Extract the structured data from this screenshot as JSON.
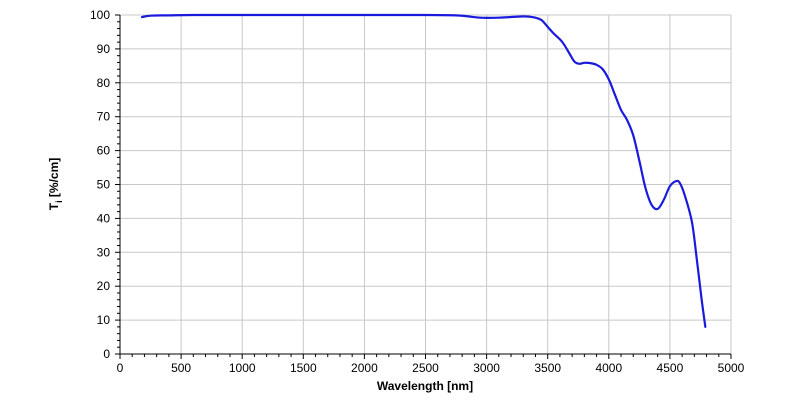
{
  "chart_data": {
    "type": "line",
    "xlabel": "Wavelength [nm]",
    "ylabel": "T",
    "ylabel_sub": "i",
    "ylabel_suffix": " [%/cm]",
    "xlim": [
      0,
      5000
    ],
    "ylim": [
      0,
      100
    ],
    "xticks": [
      0,
      500,
      1000,
      1500,
      2000,
      2500,
      3000,
      3500,
      4000,
      4500,
      5000
    ],
    "yticks": [
      0,
      10,
      20,
      30,
      40,
      50,
      60,
      70,
      80,
      90,
      100
    ],
    "grid": true,
    "line_color": "#1a1adc",
    "series": [
      {
        "x": [
          180,
          250,
          400,
          600,
          1000,
          1500,
          2000,
          2500,
          2750,
          2850,
          2950,
          3100,
          3200,
          3300,
          3350,
          3400,
          3450,
          3500,
          3550,
          3620,
          3680,
          3720,
          3760,
          3800,
          3850,
          3900,
          3950,
          4000,
          4050,
          4100,
          4150,
          4200,
          4250,
          4300,
          4350,
          4400,
          4450,
          4500,
          4550,
          4580,
          4620,
          4680,
          4720,
          4760,
          4790
        ],
        "y": [
          99.4,
          99.8,
          99.9,
          100,
          100,
          100,
          100,
          100,
          99.9,
          99.6,
          99.2,
          99.2,
          99.4,
          99.6,
          99.5,
          99.2,
          98.5,
          96.5,
          94.5,
          92.0,
          88.5,
          86.2,
          85.6,
          85.9,
          85.8,
          85.3,
          84.0,
          81.0,
          76.5,
          72.0,
          69.0,
          64.5,
          57.0,
          49.0,
          44.0,
          42.8,
          45.5,
          49.5,
          51.0,
          50.5,
          47.0,
          39.0,
          28.0,
          16.0,
          8.0
        ]
      }
    ]
  }
}
